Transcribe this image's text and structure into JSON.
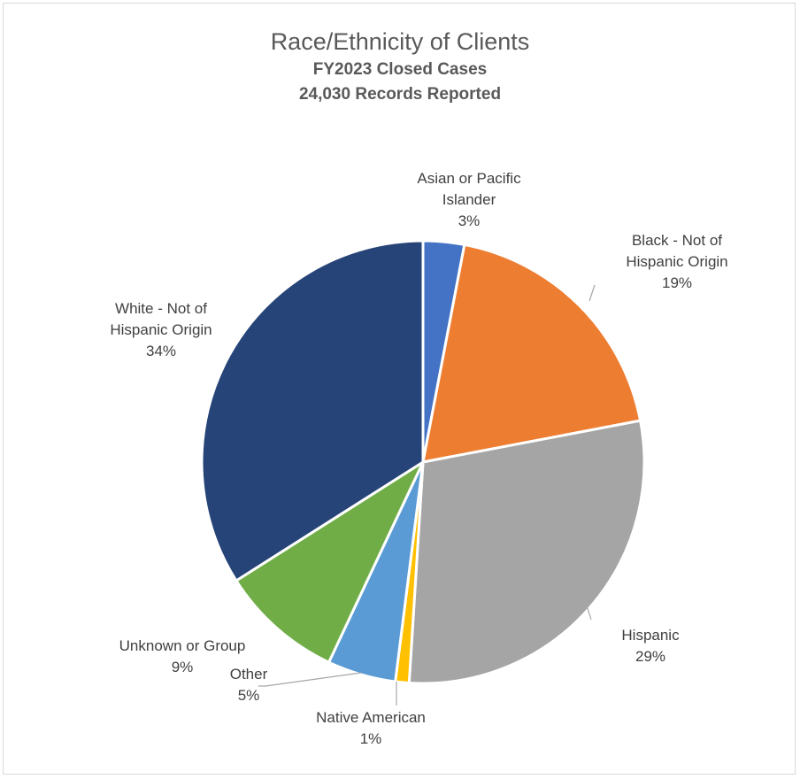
{
  "chart_data": {
    "type": "pie",
    "title": "Race/Ethnicity of Clients",
    "subtitle_lines": [
      "FY2023 Closed Cases",
      "24,030 Records Reported"
    ],
    "slices": [
      {
        "label_lines": [
          "Asian or Pacific",
          "Islander"
        ],
        "label": "Asian or Pacific Islander",
        "value": 3,
        "value_label": "3%",
        "color": "#4472C4"
      },
      {
        "label_lines": [
          "Black - Not of",
          "Hispanic Origin"
        ],
        "label": "Black - Not of Hispanic Origin",
        "value": 19,
        "value_label": "19%",
        "color": "#ED7D31"
      },
      {
        "label_lines": [
          "Hispanic"
        ],
        "label": "Hispanic",
        "value": 29,
        "value_label": "29%",
        "color": "#A5A5A5"
      },
      {
        "label_lines": [
          "Native American"
        ],
        "label": "Native American",
        "value": 1,
        "value_label": "1%",
        "color": "#FFC000"
      },
      {
        "label_lines": [
          "Other"
        ],
        "label": "Other",
        "value": 5,
        "value_label": "5%",
        "color": "#5B9BD5"
      },
      {
        "label_lines": [
          "Unknown or Group"
        ],
        "label": "Unknown or Group",
        "value": 9,
        "value_label": "9%",
        "color": "#70AD47"
      },
      {
        "label_lines": [
          "White - Not of",
          "Hispanic Origin"
        ],
        "label": "White - Not of Hispanic Origin",
        "value": 34,
        "value_label": "34%",
        "color": "#264478"
      }
    ]
  }
}
